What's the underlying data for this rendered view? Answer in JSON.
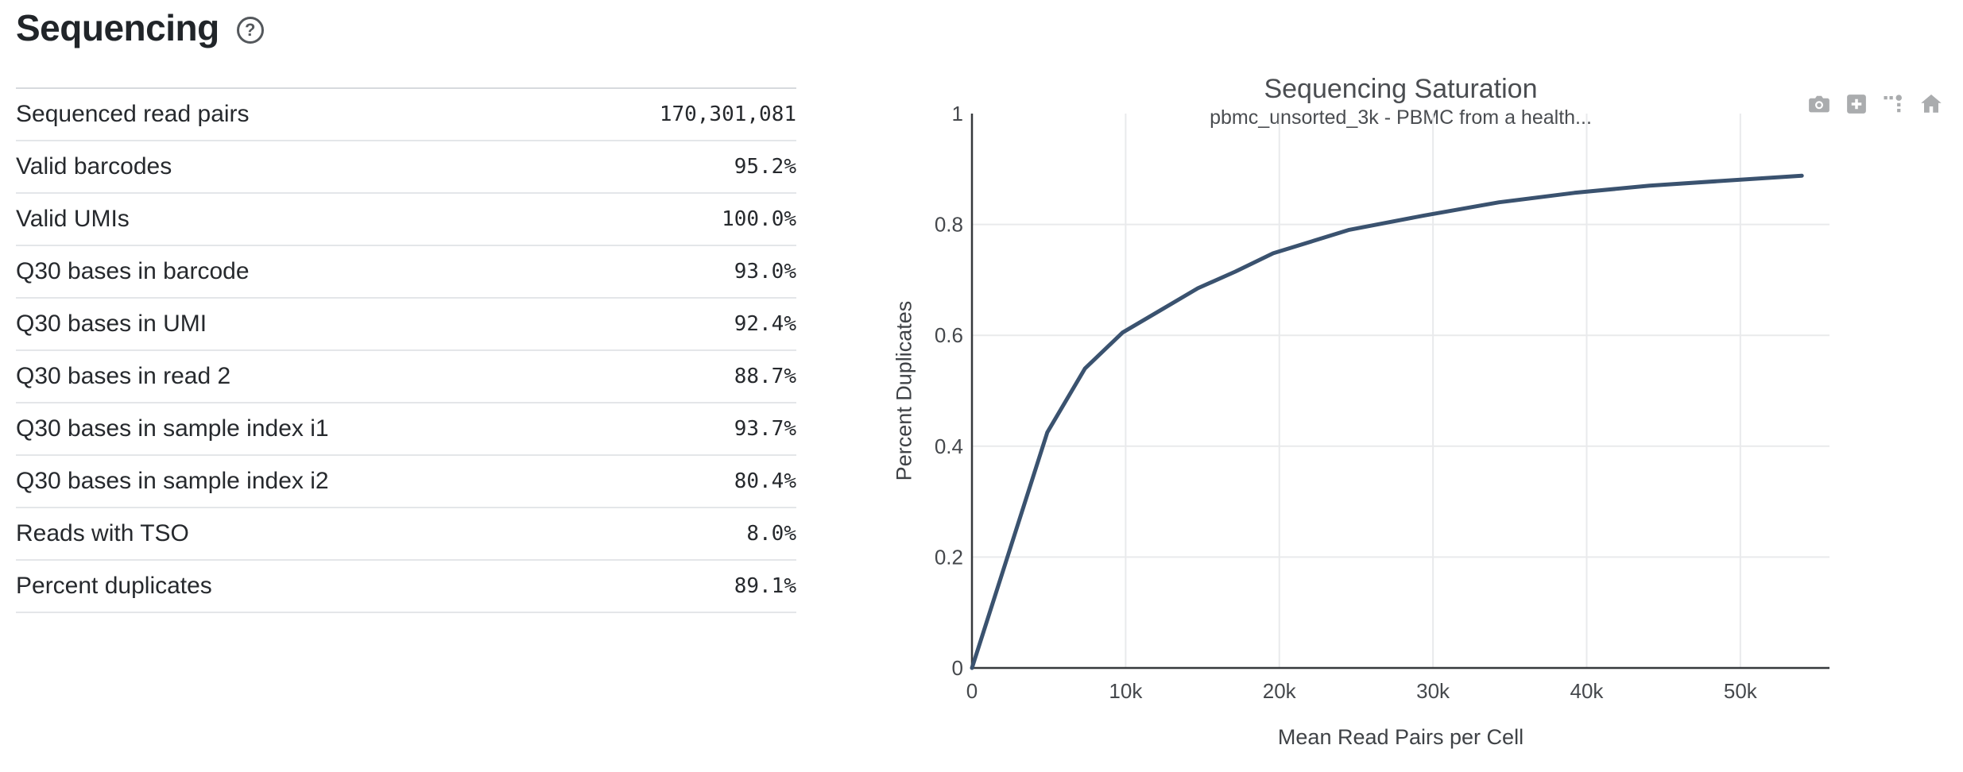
{
  "section": {
    "title": "Sequencing",
    "help_glyph": "?"
  },
  "metrics": {
    "rows": [
      {
        "label": "Sequenced read pairs",
        "value": "170,301,081"
      },
      {
        "label": "Valid barcodes",
        "value": "95.2%"
      },
      {
        "label": "Valid UMIs",
        "value": "100.0%"
      },
      {
        "label": "Q30 bases in barcode",
        "value": "93.0%"
      },
      {
        "label": "Q30 bases in UMI",
        "value": "92.4%"
      },
      {
        "label": "Q30 bases in read 2",
        "value": "88.7%"
      },
      {
        "label": "Q30 bases in sample index i1",
        "value": "93.7%"
      },
      {
        "label": "Q30 bases in sample index i2",
        "value": "80.4%"
      },
      {
        "label": "Reads with TSO",
        "value": "8.0%"
      },
      {
        "label": "Percent duplicates",
        "value": "89.1%"
      }
    ]
  },
  "toolbar": {
    "icons": [
      "camera-icon",
      "zoom-in-icon",
      "spike-lines-icon",
      "home-icon"
    ]
  },
  "chart_data": {
    "type": "line",
    "title": "Sequencing Saturation",
    "subtitle": "pbmc_unsorted_3k - PBMC from a health...",
    "xlabel": "Mean Read Pairs per Cell",
    "ylabel": "Percent Duplicates",
    "xlim": [
      0,
      55800
    ],
    "ylim": [
      0,
      1
    ],
    "grid": true,
    "line_color": "#3a526f",
    "x_ticks": [
      {
        "v": 0,
        "label": "0"
      },
      {
        "v": 10000,
        "label": "10k"
      },
      {
        "v": 20000,
        "label": "20k"
      },
      {
        "v": 30000,
        "label": "30k"
      },
      {
        "v": 40000,
        "label": "40k"
      },
      {
        "v": 50000,
        "label": "50k"
      }
    ],
    "y_ticks": [
      {
        "v": 0,
        "label": "0"
      },
      {
        "v": 0.2,
        "label": "0.2"
      },
      {
        "v": 0.4,
        "label": "0.4"
      },
      {
        "v": 0.6,
        "label": "0.6"
      },
      {
        "v": 0.8,
        "label": "0.8"
      },
      {
        "v": 1,
        "label": "1"
      }
    ],
    "series": [
      {
        "name": "Sequencing Saturation",
        "x": [
          0,
          4900,
          7350,
          9800,
          12250,
          14700,
          17150,
          19600,
          24500,
          29400,
          34300,
          39200,
          44100,
          49000,
          54000
        ],
        "y": [
          0,
          0.425,
          0.54,
          0.605,
          0.645,
          0.685,
          0.715,
          0.748,
          0.79,
          0.816,
          0.84,
          0.857,
          0.87,
          0.879,
          0.888
        ]
      }
    ]
  }
}
